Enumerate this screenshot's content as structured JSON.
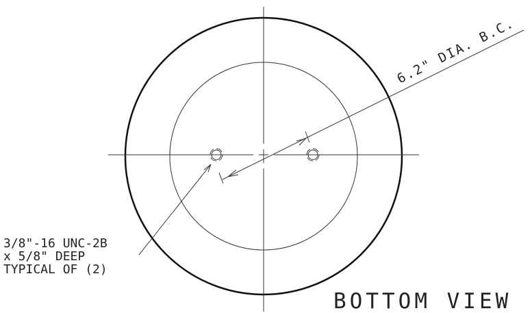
{
  "title": "BOTTOM VIEW",
  "dimension": "6.2\" DIA. B.C.",
  "note": {
    "lines": [
      "3/8\"-16 UNC-2B",
      "x 5/8\" DEEP",
      "TYPICAL OF (2)"
    ]
  }
}
